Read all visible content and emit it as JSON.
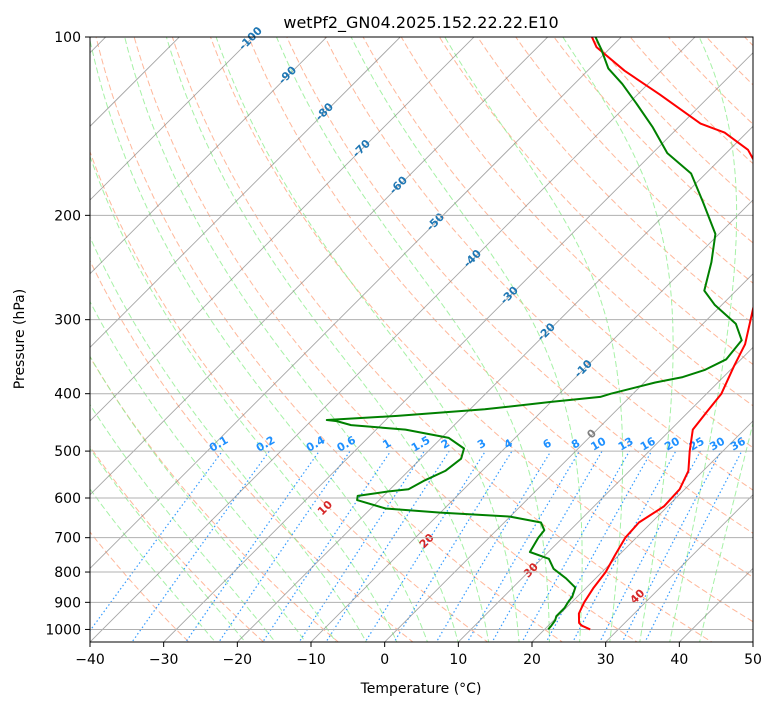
{
  "chart_data": {
    "type": "line",
    "title": "wetPf2_GN04.2025.152.22.22.E10",
    "xlabel": "Temperature (°C)",
    "ylabel": "Pressure (hPa)",
    "xlim": [
      -40,
      50
    ],
    "ylim": [
      1050,
      100
    ],
    "y_scale": "log",
    "grid": true,
    "x_ticks": [
      -40,
      -30,
      -20,
      -10,
      0,
      10,
      20,
      30,
      40,
      50
    ],
    "y_ticks": [
      100,
      200,
      300,
      400,
      500,
      600,
      700,
      800,
      900,
      1000
    ],
    "skew": 1,
    "colors": {
      "temperature": "#ff0000",
      "dewpoint": "#008000",
      "isotherm": "#808080",
      "dry_adiabat": "#ffa07a",
      "moist_adiabat": "#90ee90",
      "mixing_ratio": "#1e90ff",
      "dry_adiabat_label": "#d62728",
      "isotherm_label": "#1f77b4"
    },
    "series": [
      {
        "points": [
          [
            26.2,
            1000
          ],
          [
            24.5,
            985
          ],
          [
            23.8,
            975
          ],
          [
            22.5,
            940
          ],
          [
            21.7,
            900
          ],
          [
            21,
            850
          ],
          [
            20.5,
            800
          ],
          [
            19.5,
            750
          ],
          [
            18.5,
            700
          ],
          [
            18.3,
            660
          ],
          [
            19.5,
            620
          ],
          [
            19.3,
            580
          ],
          [
            18,
            540
          ],
          [
            15.5,
            500
          ],
          [
            13,
            460
          ],
          [
            12.5,
            430
          ],
          [
            12,
            400
          ],
          [
            10,
            360
          ],
          [
            8.5,
            330
          ],
          [
            5,
            290
          ],
          [
            1,
            250
          ],
          [
            -4.5,
            210
          ],
          [
            -8.5,
            190
          ],
          [
            -12.5,
            170
          ],
          [
            -17.5,
            155
          ],
          [
            -23,
            145
          ],
          [
            -27.5,
            140
          ],
          [
            -37,
            125
          ],
          [
            -45,
            114
          ],
          [
            -52,
            104
          ],
          [
            -54,
            100
          ]
        ]
      },
      {
        "points": [
          [
            20.5,
            1000
          ],
          [
            20.4,
            985
          ],
          [
            20.2,
            965
          ],
          [
            19.8,
            950
          ],
          [
            19.8,
            920
          ],
          [
            19.5,
            900
          ],
          [
            19.3,
            880
          ],
          [
            18.5,
            850
          ],
          [
            16,
            820
          ],
          [
            13,
            790
          ],
          [
            11,
            760
          ],
          [
            7.5,
            740
          ],
          [
            6.7,
            700
          ],
          [
            6.5,
            680
          ],
          [
            5,
            660
          ],
          [
            0,
            645
          ],
          [
            -10,
            635
          ],
          [
            -18,
            625
          ],
          [
            -23,
            605
          ],
          [
            -23.5,
            595
          ],
          [
            -20,
            585
          ],
          [
            -17.5,
            580
          ],
          [
            -16.5,
            560
          ],
          [
            -15,
            540
          ],
          [
            -14.5,
            515
          ],
          [
            -15.5,
            495
          ],
          [
            -19,
            475
          ],
          [
            -26,
            460
          ],
          [
            -34,
            452
          ],
          [
            -36.5,
            445
          ],
          [
            -38,
            443
          ],
          [
            -29,
            436
          ],
          [
            -18,
            425
          ],
          [
            -10,
            413
          ],
          [
            -4,
            405
          ],
          [
            -3,
            400
          ],
          [
            1.5,
            383
          ],
          [
            4.5,
            375
          ],
          [
            6.5,
            365
          ],
          [
            8,
            350
          ],
          [
            7.5,
            325
          ],
          [
            4.5,
            305
          ],
          [
            -1,
            283
          ],
          [
            -4.3,
            268
          ],
          [
            -7.2,
            240
          ],
          [
            -10.5,
            215
          ],
          [
            -16.5,
            190
          ],
          [
            -22,
            170
          ],
          [
            -28,
            157
          ],
          [
            -33.5,
            142
          ],
          [
            -38.7,
            130
          ],
          [
            -43.5,
            120
          ],
          [
            -47.5,
            113
          ],
          [
            -51,
            105
          ],
          [
            -53.5,
            100
          ]
        ]
      }
    ],
    "mixing_ratio_labels": [
      "0.1",
      "0.2",
      "0.4",
      "0.6",
      "1",
      "1.5",
      "2",
      "3",
      "4",
      "6",
      "8",
      "10",
      "13",
      "16",
      "20",
      "25",
      "30",
      "36"
    ],
    "isotherm_labels": [
      "-100",
      "-90",
      "-80",
      "-70",
      "-60",
      "-50",
      "-40",
      "-30",
      "-20",
      "-10",
      "0"
    ],
    "dry_adiabat_labels": [
      "10",
      "20",
      "30",
      "40"
    ]
  }
}
